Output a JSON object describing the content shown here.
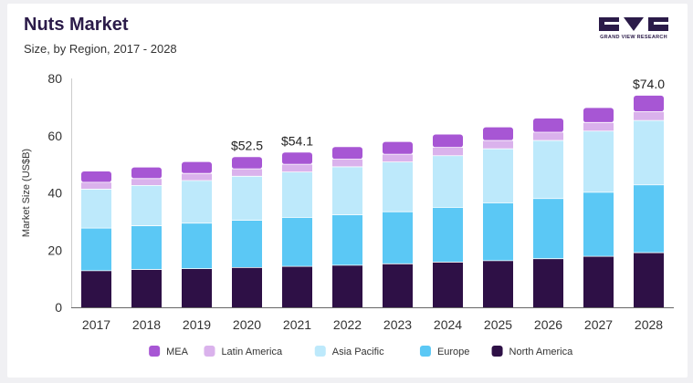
{
  "header": {
    "title": "Nuts Market",
    "subtitle": "Size, by Region, 2017 - 2028"
  },
  "logo": {
    "text": "GRAND VIEW RESEARCH"
  },
  "colors": {
    "North America": "#2e1046",
    "Europe": "#5bc8f5",
    "Asia Pacific": "#bde9fb",
    "Latin America": "#dab2ec",
    "MEA": "#a756d4",
    "logo": "#2b1b49"
  },
  "chart_data": {
    "type": "bar",
    "stacked": true,
    "categories": [
      "2017",
      "2018",
      "2019",
      "2020",
      "2021",
      "2022",
      "2023",
      "2024",
      "2025",
      "2026",
      "2027",
      "2028"
    ],
    "series": [
      {
        "name": "North America",
        "values": [
          12.8,
          13.2,
          13.5,
          13.9,
          14.3,
          14.7,
          15.2,
          15.8,
          16.3,
          17.0,
          17.8,
          19.1
        ]
      },
      {
        "name": "Europe",
        "values": [
          14.9,
          15.3,
          15.9,
          16.5,
          17.1,
          17.6,
          18.2,
          19.1,
          20.2,
          21.0,
          22.4,
          23.7
        ]
      },
      {
        "name": "Asia Pacific",
        "values": [
          13.6,
          14.1,
          14.9,
          15.4,
          15.9,
          16.8,
          17.4,
          18.1,
          18.9,
          20.3,
          21.4,
          22.5
        ]
      },
      {
        "name": "Latin America",
        "values": [
          2.4,
          2.4,
          2.5,
          2.6,
          2.7,
          2.7,
          2.7,
          2.9,
          2.9,
          2.9,
          3.0,
          3.1
        ]
      },
      {
        "name": "MEA",
        "values": [
          3.8,
          3.9,
          4.0,
          4.1,
          4.1,
          4.2,
          4.3,
          4.5,
          4.6,
          4.8,
          5.1,
          5.6
        ]
      }
    ],
    "annotations": [
      {
        "category": "2020",
        "label": "$52.5",
        "value": 52.5
      },
      {
        "category": "2021",
        "label": "$54.1",
        "value": 54.1
      },
      {
        "category": "2028",
        "label": "$74.0",
        "value": 74.0
      }
    ],
    "xlabel": "",
    "ylabel": "Market Size (US$B)",
    "ylim": [
      0,
      80
    ],
    "yticks": [
      "0",
      "20",
      "40",
      "60",
      "80"
    ],
    "grid": false,
    "legend": {
      "position": "bottom",
      "order": [
        "MEA",
        "Latin America",
        "Asia Pacific",
        "Europe",
        "North America"
      ]
    }
  }
}
